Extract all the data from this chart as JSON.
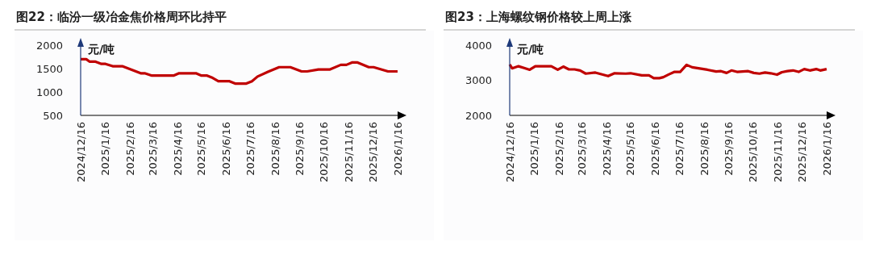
{
  "chart_data": [
    {
      "type": "line",
      "title": "图22：临汾一级冶金焦价格周环比持平",
      "ylabel": "元/吨",
      "xlim": [
        "2024-12-16",
        "2026-01-16"
      ],
      "xticks": [
        {
          "value": "2024-12-16",
          "label": "2024/12/16"
        },
        {
          "value": "2025-01-16",
          "label": "2025/1/16"
        },
        {
          "value": "2025-02-16",
          "label": "2025/2/16"
        },
        {
          "value": "2025-03-16",
          "label": "2025/3/16"
        },
        {
          "value": "2025-04-16",
          "label": "2025/4/16"
        },
        {
          "value": "2025-05-16",
          "label": "2025/5/16"
        },
        {
          "value": "2025-06-16",
          "label": "2025/6/16"
        },
        {
          "value": "2025-07-16",
          "label": "2025/7/16"
        },
        {
          "value": "2025-08-16",
          "label": "2025/8/16"
        },
        {
          "value": "2025-09-16",
          "label": "2025/9/16"
        },
        {
          "value": "2025-10-16",
          "label": "2025/10/16"
        },
        {
          "value": "2025-11-16",
          "label": "2025/11/16"
        },
        {
          "value": "2025-12-16",
          "label": "2025/12/16"
        },
        {
          "value": "2026-01-16",
          "label": "2026/1/16"
        }
      ],
      "ylim": [
        500,
        2000
      ],
      "yticks": [
        500,
        1000,
        1500,
        2000
      ],
      "grid": false,
      "x": [
        "2024-12-16",
        "2024-12-23",
        "2024-12-27",
        "2025-01-03",
        "2025-01-11",
        "2025-01-16",
        "2025-01-25",
        "2025-02-06",
        "2025-03-01",
        "2025-03-06",
        "2025-03-15",
        "2025-04-11",
        "2025-04-18",
        "2025-05-09",
        "2025-05-16",
        "2025-05-23",
        "2025-05-30",
        "2025-06-06",
        "2025-06-20",
        "2025-06-27",
        "2025-07-11",
        "2025-07-18",
        "2025-07-25",
        "2025-08-07",
        "2025-08-21",
        "2025-09-04",
        "2025-09-18",
        "2025-09-25",
        "2025-10-09",
        "2025-10-23",
        "2025-11-06",
        "2025-11-13",
        "2025-11-20",
        "2025-11-27",
        "2025-12-11",
        "2025-12-17",
        "2026-01-04",
        "2026-01-16"
      ],
      "series": [
        {
          "color": "#c00000",
          "values": [
            1700,
            1700,
            1650,
            1650,
            1600,
            1600,
            1550,
            1550,
            1400,
            1400,
            1350,
            1350,
            1400,
            1400,
            1350,
            1350,
            1300,
            1230,
            1230,
            1180,
            1180,
            1230,
            1330,
            1430,
            1530,
            1530,
            1440,
            1440,
            1480,
            1480,
            1580,
            1580,
            1630,
            1630,
            1530,
            1530,
            1440,
            1440
          ]
        }
      ]
    },
    {
      "type": "line",
      "title": "图23：上海螺纹钢价格较上周上涨",
      "ylabel": "元/吨",
      "xlim": [
        "2024-12-16",
        "2026-01-16"
      ],
      "xticks": [
        {
          "value": "2024-12-16",
          "label": "2024/12/16"
        },
        {
          "value": "2025-01-16",
          "label": "2025/1/16"
        },
        {
          "value": "2025-02-16",
          "label": "2025/2/16"
        },
        {
          "value": "2025-03-16",
          "label": "2025/3/16"
        },
        {
          "value": "2025-04-16",
          "label": "2025/4/16"
        },
        {
          "value": "2025-05-16",
          "label": "2025/5/16"
        },
        {
          "value": "2025-06-16",
          "label": "2025/6/16"
        },
        {
          "value": "2025-07-16",
          "label": "2025/7/16"
        },
        {
          "value": "2025-08-16",
          "label": "2025/8/16"
        },
        {
          "value": "2025-09-16",
          "label": "2025/9/16"
        },
        {
          "value": "2025-10-16",
          "label": "2025/10/16"
        },
        {
          "value": "2025-11-16",
          "label": "2025/11/16"
        },
        {
          "value": "2025-12-16",
          "label": "2025/12/16"
        },
        {
          "value": "2026-01-16",
          "label": "2026/1/16"
        }
      ],
      "ylim": [
        2000,
        4000
      ],
      "yticks": [
        2000,
        3000,
        4000
      ],
      "grid": false,
      "x": [
        "2024-12-16",
        "2024-12-19",
        "2024-12-27",
        "2025-01-03",
        "2025-01-10",
        "2025-01-17",
        "2025-02-06",
        "2025-02-14",
        "2025-02-21",
        "2025-02-28",
        "2025-03-07",
        "2025-03-14",
        "2025-03-21",
        "2025-04-02",
        "2025-04-18",
        "2025-04-26",
        "2025-05-10",
        "2025-05-16",
        "2025-05-30",
        "2025-06-08",
        "2025-06-14",
        "2025-06-21",
        "2025-06-26",
        "2025-07-03",
        "2025-07-10",
        "2025-07-17",
        "2025-07-25",
        "2025-08-01",
        "2025-08-20",
        "2025-08-31",
        "2025-09-06",
        "2025-09-13",
        "2025-09-19",
        "2025-09-26",
        "2025-10-10",
        "2025-10-17",
        "2025-10-24",
        "2025-10-31",
        "2025-11-07",
        "2025-11-15",
        "2025-11-21",
        "2025-11-28",
        "2025-12-05",
        "2025-12-12",
        "2025-12-19",
        "2025-12-26",
        "2026-01-03",
        "2026-01-08",
        "2026-01-16"
      ],
      "series": [
        {
          "color": "#c00000",
          "values": [
            3450,
            3340,
            3400,
            3350,
            3300,
            3400,
            3400,
            3300,
            3390,
            3310,
            3310,
            3280,
            3190,
            3220,
            3120,
            3200,
            3190,
            3200,
            3140,
            3140,
            3060,
            3060,
            3090,
            3170,
            3240,
            3240,
            3440,
            3370,
            3300,
            3250,
            3260,
            3210,
            3280,
            3240,
            3260,
            3210,
            3190,
            3220,
            3200,
            3160,
            3230,
            3260,
            3280,
            3240,
            3320,
            3280,
            3320,
            3280,
            3320
          ]
        }
      ]
    }
  ]
}
